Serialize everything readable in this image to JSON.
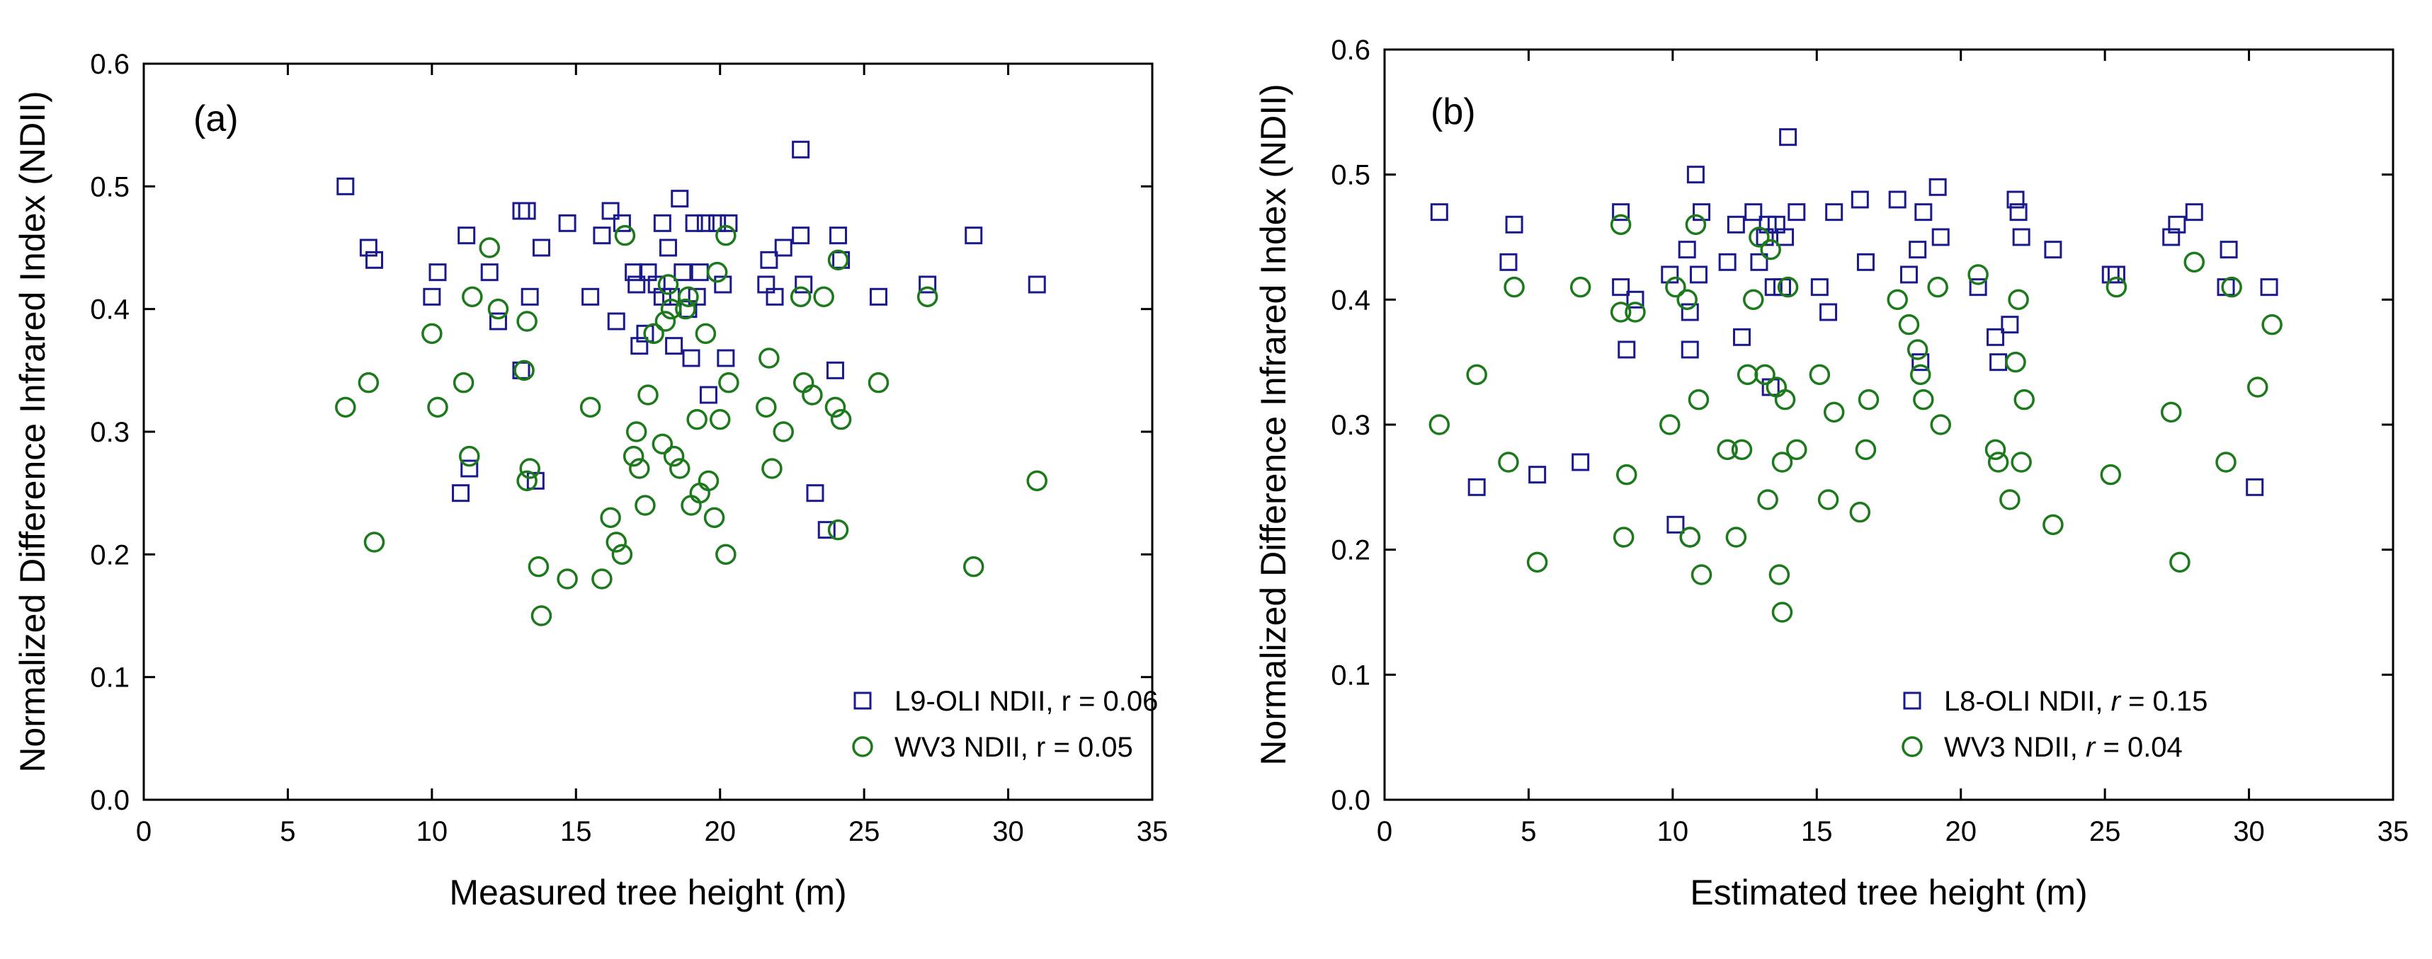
{
  "colors": {
    "series1": "#1a1a8c",
    "series2": "#1c7a1c",
    "axis": "#000000"
  },
  "chart_data": [
    {
      "type": "scatter",
      "panel_label": "(a)",
      "xlabel": "Measured tree height (m)",
      "ylabel": "Normalized Difference Infrared Index (NDII)",
      "xlim": [
        0,
        35
      ],
      "ylim": [
        0,
        0.6
      ],
      "xticks": [
        0,
        5,
        10,
        15,
        20,
        25,
        30,
        35
      ],
      "yticks": [
        0.0,
        0.1,
        0.2,
        0.3,
        0.4,
        0.5,
        0.6
      ],
      "xtick_labels": [
        "0",
        "5",
        "10",
        "15",
        "20",
        "25",
        "30",
        "35"
      ],
      "ytick_labels": [
        "0.0",
        "0.1",
        "0.2",
        "0.3",
        "0.4",
        "0.5",
        "0.6"
      ],
      "grid": false,
      "legend_position": "bottom-right",
      "series": [
        {
          "name": "L9-OLI NDII, r = 0.06",
          "marker": "square",
          "color": "series1",
          "points": [
            [
              7.0,
              0.5
            ],
            [
              7.8,
              0.45
            ],
            [
              8.0,
              0.44
            ],
            [
              10.0,
              0.41
            ],
            [
              10.2,
              0.43
            ],
            [
              11.2,
              0.46
            ],
            [
              12.0,
              0.43
            ],
            [
              12.3,
              0.39
            ],
            [
              13.1,
              0.48
            ],
            [
              13.3,
              0.48
            ],
            [
              13.4,
              0.41
            ],
            [
              13.8,
              0.45
            ],
            [
              14.7,
              0.47
            ],
            [
              15.5,
              0.41
            ],
            [
              15.9,
              0.46
            ],
            [
              16.2,
              0.48
            ],
            [
              16.4,
              0.39
            ],
            [
              16.6,
              0.47
            ],
            [
              17.0,
              0.43
            ],
            [
              17.1,
              0.42
            ],
            [
              17.2,
              0.37
            ],
            [
              17.4,
              0.38
            ],
            [
              17.5,
              0.43
            ],
            [
              17.8,
              0.42
            ],
            [
              18.0,
              0.47
            ],
            [
              18.2,
              0.45
            ],
            [
              18.3,
              0.41
            ],
            [
              18.4,
              0.37
            ],
            [
              18.6,
              0.49
            ],
            [
              18.7,
              0.43
            ],
            [
              18.9,
              0.4
            ],
            [
              19.1,
              0.47
            ],
            [
              19.3,
              0.43
            ],
            [
              19.5,
              0.47
            ],
            [
              19.6,
              0.33
            ],
            [
              19.9,
              0.47
            ],
            [
              20.1,
              0.42
            ],
            [
              20.3,
              0.47
            ],
            [
              21.6,
              0.42
            ],
            [
              21.7,
              0.44
            ],
            [
              21.9,
              0.41
            ],
            [
              22.2,
              0.45
            ],
            [
              22.8,
              0.53
            ],
            [
              22.9,
              0.42
            ],
            [
              23.3,
              0.25
            ],
            [
              23.7,
              0.22
            ],
            [
              24.0,
              0.35
            ],
            [
              24.1,
              0.46
            ],
            [
              24.2,
              0.44
            ],
            [
              25.5,
              0.41
            ],
            [
              27.2,
              0.42
            ],
            [
              28.8,
              0.46
            ],
            [
              31.0,
              0.42
            ],
            [
              11.3,
              0.27
            ],
            [
              11.0,
              0.25
            ],
            [
              13.6,
              0.26
            ],
            [
              13.1,
              0.35
            ],
            [
              19.0,
              0.36
            ],
            [
              20.2,
              0.36
            ],
            [
              22.8,
              0.46
            ],
            [
              18.0,
              0.41
            ],
            [
              19.2,
              0.41
            ]
          ]
        },
        {
          "name": "WV3 NDII, r = 0.05",
          "marker": "circle",
          "color": "series2",
          "points": [
            [
              7.0,
              0.32
            ],
            [
              7.8,
              0.34
            ],
            [
              8.0,
              0.21
            ],
            [
              10.0,
              0.38
            ],
            [
              10.2,
              0.32
            ],
            [
              11.1,
              0.34
            ],
            [
              11.3,
              0.28
            ],
            [
              11.4,
              0.41
            ],
            [
              12.0,
              0.45
            ],
            [
              12.3,
              0.4
            ],
            [
              13.2,
              0.35
            ],
            [
              13.3,
              0.26
            ],
            [
              13.4,
              0.27
            ],
            [
              13.3,
              0.39
            ],
            [
              13.7,
              0.19
            ],
            [
              13.8,
              0.15
            ],
            [
              14.7,
              0.18
            ],
            [
              15.5,
              0.32
            ],
            [
              15.9,
              0.18
            ],
            [
              16.2,
              0.23
            ],
            [
              16.4,
              0.21
            ],
            [
              16.6,
              0.2
            ],
            [
              16.7,
              0.46
            ],
            [
              17.0,
              0.28
            ],
            [
              17.1,
              0.3
            ],
            [
              17.2,
              0.27
            ],
            [
              17.4,
              0.24
            ],
            [
              17.5,
              0.33
            ],
            [
              17.7,
              0.38
            ],
            [
              18.0,
              0.29
            ],
            [
              18.1,
              0.39
            ],
            [
              18.2,
              0.42
            ],
            [
              18.3,
              0.4
            ],
            [
              18.4,
              0.28
            ],
            [
              18.6,
              0.27
            ],
            [
              18.8,
              0.4
            ],
            [
              19.0,
              0.24
            ],
            [
              19.2,
              0.31
            ],
            [
              19.3,
              0.25
            ],
            [
              19.5,
              0.38
            ],
            [
              19.6,
              0.26
            ],
            [
              19.8,
              0.23
            ],
            [
              19.9,
              0.43
            ],
            [
              20.0,
              0.31
            ],
            [
              20.2,
              0.2
            ],
            [
              20.3,
              0.34
            ],
            [
              21.6,
              0.32
            ],
            [
              21.7,
              0.36
            ],
            [
              21.8,
              0.27
            ],
            [
              22.2,
              0.3
            ],
            [
              22.8,
              0.41
            ],
            [
              22.9,
              0.34
            ],
            [
              23.2,
              0.33
            ],
            [
              23.6,
              0.41
            ],
            [
              24.0,
              0.32
            ],
            [
              24.1,
              0.44
            ],
            [
              24.2,
              0.31
            ],
            [
              24.1,
              0.22
            ],
            [
              25.5,
              0.34
            ],
            [
              27.2,
              0.41
            ],
            [
              28.8,
              0.19
            ],
            [
              31.0,
              0.26
            ],
            [
              20.2,
              0.46
            ],
            [
              18.9,
              0.41
            ]
          ]
        }
      ]
    },
    {
      "type": "scatter",
      "panel_label": "(b)",
      "xlabel": "Estimated tree height (m)",
      "ylabel": "Normalized Difference Infrared Index (NDII)",
      "xlim": [
        0,
        35
      ],
      "ylim": [
        0,
        0.6
      ],
      "xticks": [
        0,
        5,
        10,
        15,
        20,
        25,
        30,
        35
      ],
      "yticks": [
        0.0,
        0.1,
        0.2,
        0.3,
        0.4,
        0.5,
        0.6
      ],
      "xtick_labels": [
        "0",
        "5",
        "10",
        "15",
        "20",
        "25",
        "30",
        "35"
      ],
      "ytick_labels": [
        "0.0",
        "0.1",
        "0.2",
        "0.3",
        "0.4",
        "0.5",
        "0.6"
      ],
      "grid": false,
      "legend_position": "bottom-right",
      "series": [
        {
          "name": "L8-OLI NDII, r = 0.15",
          "marker": "square",
          "color": "series1",
          "points": [
            [
              1.9,
              0.47
            ],
            [
              3.2,
              0.25
            ],
            [
              4.3,
              0.43
            ],
            [
              4.5,
              0.46
            ],
            [
              5.3,
              0.26
            ],
            [
              6.8,
              0.27
            ],
            [
              8.2,
              0.47
            ],
            [
              8.2,
              0.41
            ],
            [
              8.4,
              0.36
            ],
            [
              8.7,
              0.4
            ],
            [
              9.9,
              0.42
            ],
            [
              10.1,
              0.22
            ],
            [
              10.5,
              0.44
            ],
            [
              10.6,
              0.39
            ],
            [
              10.8,
              0.5
            ],
            [
              10.9,
              0.42
            ],
            [
              11.0,
              0.47
            ],
            [
              12.2,
              0.46
            ],
            [
              12.4,
              0.37
            ],
            [
              12.8,
              0.47
            ],
            [
              13.0,
              0.43
            ],
            [
              13.2,
              0.45
            ],
            [
              13.4,
              0.33
            ],
            [
              13.6,
              0.46
            ],
            [
              13.8,
              0.41
            ],
            [
              13.9,
              0.45
            ],
            [
              14.0,
              0.53
            ],
            [
              14.3,
              0.47
            ],
            [
              15.1,
              0.41
            ],
            [
              15.4,
              0.39
            ],
            [
              15.6,
              0.47
            ],
            [
              16.5,
              0.48
            ],
            [
              16.7,
              0.43
            ],
            [
              17.8,
              0.48
            ],
            [
              18.2,
              0.42
            ],
            [
              18.5,
              0.44
            ],
            [
              18.7,
              0.47
            ],
            [
              18.6,
              0.35
            ],
            [
              19.2,
              0.49
            ],
            [
              19.3,
              0.45
            ],
            [
              20.6,
              0.41
            ],
            [
              21.2,
              0.37
            ],
            [
              21.3,
              0.35
            ],
            [
              21.7,
              0.38
            ],
            [
              21.9,
              0.48
            ],
            [
              22.0,
              0.47
            ],
            [
              22.1,
              0.45
            ],
            [
              23.2,
              0.44
            ],
            [
              25.2,
              0.42
            ],
            [
              25.4,
              0.42
            ],
            [
              27.3,
              0.45
            ],
            [
              27.5,
              0.46
            ],
            [
              28.1,
              0.47
            ],
            [
              29.3,
              0.44
            ],
            [
              29.2,
              0.41
            ],
            [
              30.2,
              0.25
            ],
            [
              30.7,
              0.41
            ],
            [
              11.9,
              0.43
            ],
            [
              13.5,
              0.41
            ],
            [
              10.6,
              0.36
            ],
            [
              13.3,
              0.46
            ]
          ]
        },
        {
          "name": "WV3 NDII, r = 0.04",
          "marker": "circle",
          "color": "series2",
          "points": [
            [
              1.9,
              0.3
            ],
            [
              3.2,
              0.34
            ],
            [
              4.3,
              0.27
            ],
            [
              4.5,
              0.41
            ],
            [
              5.3,
              0.19
            ],
            [
              6.8,
              0.41
            ],
            [
              8.2,
              0.46
            ],
            [
              8.2,
              0.39
            ],
            [
              8.3,
              0.21
            ],
            [
              8.4,
              0.26
            ],
            [
              8.7,
              0.39
            ],
            [
              9.9,
              0.3
            ],
            [
              10.1,
              0.41
            ],
            [
              10.5,
              0.4
            ],
            [
              10.6,
              0.21
            ],
            [
              10.6,
              0.21
            ],
            [
              10.8,
              0.46
            ],
            [
              10.9,
              0.32
            ],
            [
              11.0,
              0.18
            ],
            [
              11.9,
              0.28
            ],
            [
              12.2,
              0.21
            ],
            [
              12.4,
              0.28
            ],
            [
              12.6,
              0.34
            ],
            [
              12.8,
              0.4
            ],
            [
              13.0,
              0.45
            ],
            [
              13.2,
              0.34
            ],
            [
              13.3,
              0.24
            ],
            [
              13.4,
              0.44
            ],
            [
              13.6,
              0.33
            ],
            [
              13.7,
              0.18
            ],
            [
              13.8,
              0.15
            ],
            [
              13.8,
              0.27
            ],
            [
              13.9,
              0.32
            ],
            [
              14.0,
              0.41
            ],
            [
              14.3,
              0.28
            ],
            [
              15.1,
              0.34
            ],
            [
              15.4,
              0.24
            ],
            [
              15.6,
              0.31
            ],
            [
              16.5,
              0.23
            ],
            [
              16.7,
              0.28
            ],
            [
              16.8,
              0.32
            ],
            [
              17.8,
              0.4
            ],
            [
              18.2,
              0.38
            ],
            [
              18.5,
              0.36
            ],
            [
              18.6,
              0.34
            ],
            [
              18.7,
              0.32
            ],
            [
              19.2,
              0.41
            ],
            [
              19.3,
              0.3
            ],
            [
              20.6,
              0.42
            ],
            [
              21.2,
              0.28
            ],
            [
              21.3,
              0.27
            ],
            [
              21.7,
              0.24
            ],
            [
              21.9,
              0.35
            ],
            [
              22.0,
              0.4
            ],
            [
              22.1,
              0.27
            ],
            [
              22.2,
              0.32
            ],
            [
              23.2,
              0.22
            ],
            [
              25.2,
              0.26
            ],
            [
              25.4,
              0.41
            ],
            [
              27.3,
              0.31
            ],
            [
              27.6,
              0.19
            ],
            [
              28.1,
              0.43
            ],
            [
              29.2,
              0.27
            ],
            [
              29.4,
              0.41
            ],
            [
              30.3,
              0.33
            ],
            [
              30.8,
              0.38
            ]
          ]
        }
      ]
    }
  ]
}
